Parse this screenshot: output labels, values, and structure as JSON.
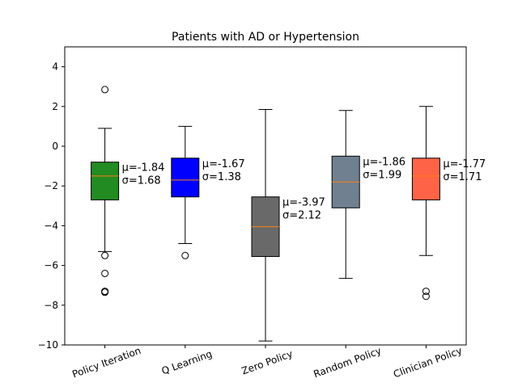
{
  "chart_data": {
    "type": "box",
    "title": "Patients with AD or Hypertension",
    "xlabel": "",
    "ylabel": "",
    "ylim": [
      -10,
      5
    ],
    "yticks": [
      -10,
      -8,
      -6,
      -4,
      -2,
      0,
      2,
      4
    ],
    "categories": [
      "Policy Iteration",
      "Q Learning",
      "Zero Policy",
      "Random Policy",
      "Clinician Policy"
    ],
    "boxes": [
      {
        "category": "Policy Iteration",
        "color": "#228B22",
        "whisker_low": -5.3,
        "q1": -2.7,
        "median": -1.5,
        "q3": -0.8,
        "whisker_high": 0.9,
        "outliers": [
          2.85,
          -5.5,
          -6.4,
          -7.3,
          -7.35
        ],
        "annotation_mu": "μ=-1.84",
        "annotation_sigma": "σ=1.68"
      },
      {
        "category": "Q Learning",
        "color": "#0000FF",
        "whisker_low": -4.9,
        "q1": -2.55,
        "median": -1.7,
        "q3": -0.6,
        "whisker_high": 1.0,
        "outliers": [
          -5.5
        ],
        "annotation_mu": "μ=-1.67",
        "annotation_sigma": "σ=1.38"
      },
      {
        "category": "Zero Policy",
        "color": "#696969",
        "whisker_low": -9.8,
        "q1": -5.55,
        "median": -4.05,
        "q3": -2.55,
        "whisker_high": 1.85,
        "outliers": [],
        "annotation_mu": "μ=-3.97",
        "annotation_sigma": "σ=2.12"
      },
      {
        "category": "Random Policy",
        "color": "#708090",
        "whisker_low": -6.65,
        "q1": -3.1,
        "median": -1.8,
        "q3": -0.5,
        "whisker_high": 1.8,
        "outliers": [],
        "annotation_mu": "μ=-1.86",
        "annotation_sigma": "σ=1.99"
      },
      {
        "category": "Clinician Policy",
        "color": "#FF6347",
        "whisker_low": -5.5,
        "q1": -2.7,
        "median": -1.5,
        "q3": -0.6,
        "whisker_high": 2.0,
        "outliers": [
          -7.3,
          -7.55
        ],
        "annotation_mu": "μ=-1.77",
        "annotation_sigma": "σ=1.71"
      }
    ],
    "median_color": "#FF7F0E",
    "grid": false,
    "legend": "none",
    "xtick_rotation_deg": 20
  }
}
